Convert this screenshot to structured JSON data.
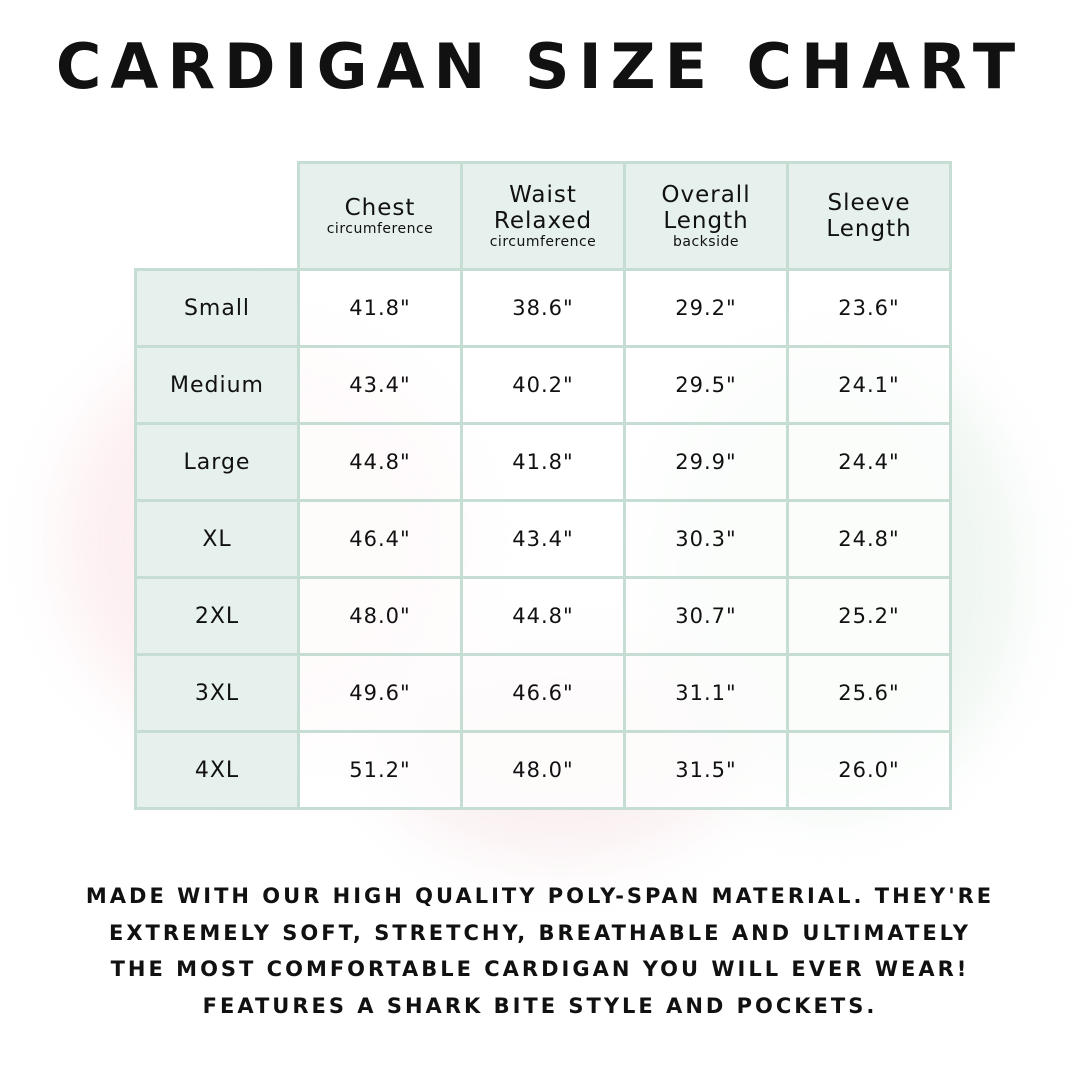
{
  "title": "CARDIGAN SIZE CHART",
  "colors": {
    "header_bg": "#e6f0ec",
    "border": "#c6ddd3",
    "text": "#111111"
  },
  "table": {
    "headers": [
      {
        "label": "Chest",
        "sub": "circumference"
      },
      {
        "label": "Waist Relaxed",
        "sub": "circumference"
      },
      {
        "label": "Overall Length",
        "sub": "backside"
      },
      {
        "label": "Sleeve Length",
        "sub": ""
      }
    ],
    "rows": [
      {
        "size": "Small",
        "values": [
          "41.8\"",
          "38.6\"",
          "29.2\"",
          "23.6\""
        ]
      },
      {
        "size": "Medium",
        "values": [
          "43.4\"",
          "40.2\"",
          "29.5\"",
          "24.1\""
        ]
      },
      {
        "size": "Large",
        "values": [
          "44.8\"",
          "41.8\"",
          "29.9\"",
          "24.4\""
        ]
      },
      {
        "size": "XL",
        "values": [
          "46.4\"",
          "43.4\"",
          "30.3\"",
          "24.8\""
        ]
      },
      {
        "size": "2XL",
        "values": [
          "48.0\"",
          "44.8\"",
          "30.7\"",
          "25.2\""
        ]
      },
      {
        "size": "3XL",
        "values": [
          "49.6\"",
          "46.6\"",
          "31.1\"",
          "25.6\""
        ]
      },
      {
        "size": "4XL",
        "values": [
          "51.2\"",
          "48.0\"",
          "31.5\"",
          "26.0\""
        ]
      }
    ]
  },
  "description": [
    "MADE WITH OUR HIGH QUALITY POLY-SPAN MATERIAL. THEY'RE",
    "EXTREMELY SOFT, STRETCHY, BREATHABLE AND ULTIMATELY",
    "THE MOST COMFORTABLE CARDIGAN YOU WILL EVER WEAR!",
    "FEATURES A SHARK BITE STYLE AND POCKETS."
  ]
}
